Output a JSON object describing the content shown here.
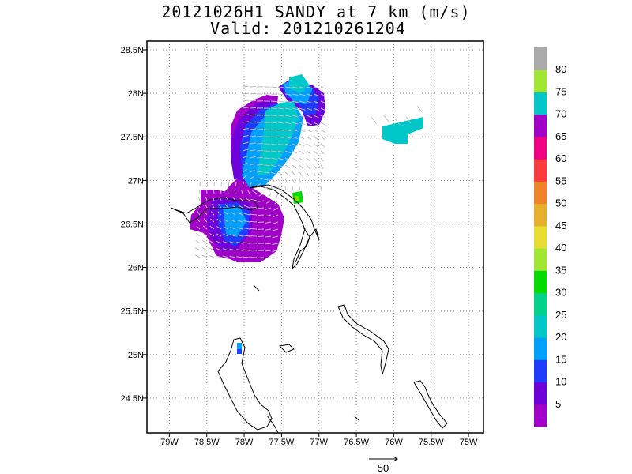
{
  "header": {
    "title": "20121026H1 SANDY at 7 km (m/s)",
    "subtitle": "Valid: 201210261204"
  },
  "map": {
    "lon_range": [
      -79.3,
      -74.8
    ],
    "lat_range": [
      24.1,
      28.6
    ],
    "lon_ticks": [
      {
        "v": -79.0,
        "label": "79W"
      },
      {
        "v": -78.5,
        "label": "78.5W"
      },
      {
        "v": -78.0,
        "label": "78W"
      },
      {
        "v": -77.5,
        "label": "77.5W"
      },
      {
        "v": -77.0,
        "label": "77W"
      },
      {
        "v": -76.5,
        "label": "76.5W"
      },
      {
        "v": -76.0,
        "label": "76W"
      },
      {
        "v": -75.5,
        "label": "75.5W"
      },
      {
        "v": -75.0,
        "label": "75W"
      }
    ],
    "lat_ticks": [
      {
        "v": 24.5,
        "label": "24.5N"
      },
      {
        "v": 25.0,
        "label": "25N"
      },
      {
        "v": 25.5,
        "label": "25.5N"
      },
      {
        "v": 26.0,
        "label": "26N"
      },
      {
        "v": 26.5,
        "label": "26.5N"
      },
      {
        "v": 27.0,
        "label": "27N"
      },
      {
        "v": 27.5,
        "label": "27.5N"
      },
      {
        "v": 28.0,
        "label": "28N"
      },
      {
        "v": 28.5,
        "label": "28.5N"
      }
    ],
    "grid": true
  },
  "colorbar": {
    "labels": [
      "5",
      "10",
      "15",
      "20",
      "25",
      "30",
      "35",
      "40",
      "45",
      "50",
      "55",
      "60",
      "65",
      "70",
      "75",
      "80"
    ],
    "colors": [
      "#a000c8",
      "#6e00dc",
      "#1e3cff",
      "#00a0ff",
      "#00c8c8",
      "#00d28c",
      "#00dc00",
      "#a0e632",
      "#e6dc32",
      "#e6af2d",
      "#f08228",
      "#fa3c3c",
      "#f00082",
      "#a000c8",
      "#00c8c8",
      "#a0e632",
      "#aaaaaa"
    ]
  },
  "reference_vector": {
    "label": "50"
  }
}
